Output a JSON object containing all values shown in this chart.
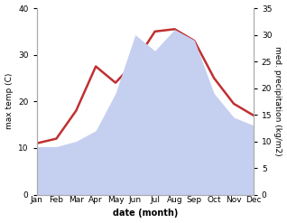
{
  "months": [
    "Jan",
    "Feb",
    "Mar",
    "Apr",
    "May",
    "Jun",
    "Jul",
    "Aug",
    "Sep",
    "Oct",
    "Nov",
    "Dec"
  ],
  "temp": [
    11.0,
    12.0,
    18.0,
    27.5,
    24.0,
    28.5,
    35.0,
    35.5,
    33.0,
    25.0,
    19.5,
    17.0
  ],
  "precip": [
    9.0,
    9.0,
    10.0,
    12.0,
    19.0,
    30.0,
    27.0,
    31.0,
    29.0,
    19.0,
    14.5,
    13.0
  ],
  "temp_color": "#c03030",
  "precip_fill_color": "#c5cff0",
  "temp_ylim": [
    0,
    40
  ],
  "precip_ylim": [
    0,
    35
  ],
  "temp_ylabel": "max temp (C)",
  "precip_ylabel": "med. precipitation (kg/m2)",
  "xlabel": "date (month)",
  "bg_color": "#ffffff",
  "spine_color": "#aaaaaa",
  "tick_fontsize": 6.5,
  "label_fontsize": 7.0
}
